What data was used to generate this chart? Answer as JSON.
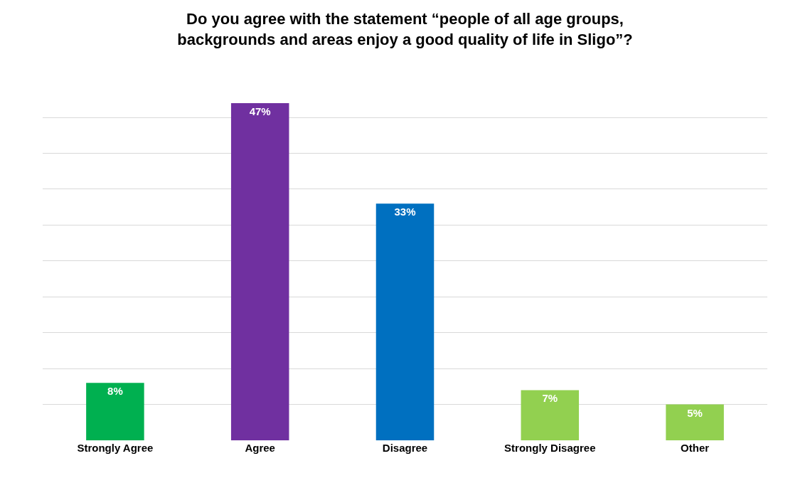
{
  "chart_data": {
    "type": "bar",
    "title": "Do you agree with the statement “people of all age groups,\nbackgrounds and areas enjoy a good quality of life in Sligo”?",
    "categories": [
      "Strongly Agree",
      "Agree",
      "Disagree",
      "Strongly Disagree",
      "Other"
    ],
    "values": [
      8,
      47,
      33,
      7,
      5
    ],
    "colors": [
      "#00b050",
      "#7030a0",
      "#0070c0",
      "#92d050",
      "#92d050"
    ],
    "value_labels": [
      "8%",
      "47%",
      "33%",
      "7%",
      "5%"
    ],
    "tick_labels": "x",
    "grid": "y",
    "legend": false
  }
}
